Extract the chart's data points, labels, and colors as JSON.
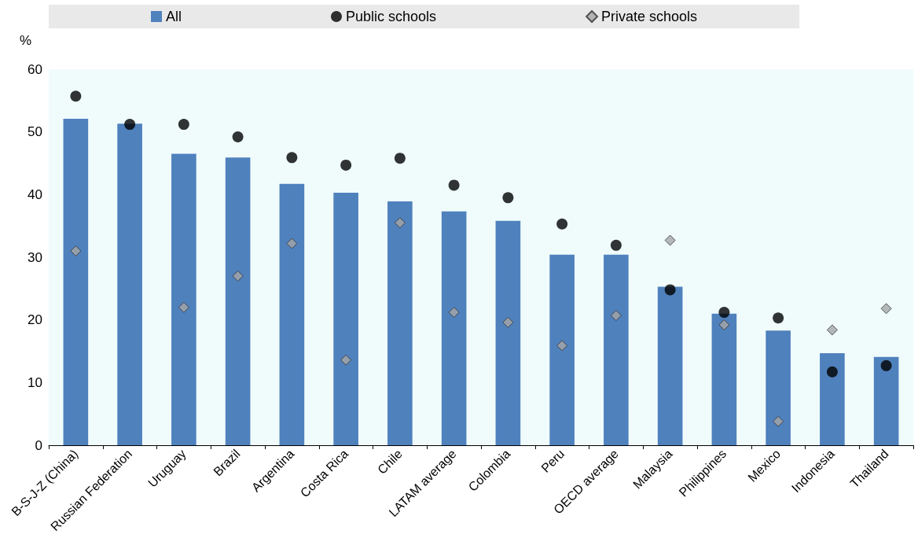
{
  "chart_data": {
    "type": "bar",
    "ylabel": "%",
    "categories": [
      "B-S-J-Z (China)",
      "Russian Federation",
      "Uruguay",
      "Brazil",
      "Argentina",
      "Costa Rica",
      "Chile",
      "LATAM average",
      "Colombia",
      "Peru",
      "OECD average",
      "Malaysia",
      "Philippines",
      "Mexico",
      "Indonesia",
      "Thailand"
    ],
    "series": [
      {
        "name": "All",
        "color": "#4f81bd",
        "values": [
          52.1,
          51.3,
          46.5,
          45.9,
          41.7,
          40.3,
          38.9,
          37.3,
          35.8,
          30.4,
          30.4,
          25.3,
          21.0,
          18.3,
          14.7,
          14.1
        ]
      },
      {
        "name": "Public schools",
        "type": "scatter",
        "marker": "circle",
        "color": "#000000",
        "values": [
          55.7,
          51.2,
          51.2,
          49.2,
          45.9,
          44.7,
          45.8,
          41.5,
          39.5,
          35.3,
          31.9,
          24.8,
          21.2,
          20.3,
          11.7,
          12.7
        ]
      },
      {
        "name": "Private schools",
        "type": "scatter",
        "marker": "diamond",
        "color": "#a6a6a6",
        "values": [
          31.0,
          null,
          22.0,
          27.0,
          32.2,
          13.6,
          35.5,
          21.2,
          19.6,
          15.9,
          20.7,
          32.7,
          19.2,
          3.8,
          18.4,
          21.8
        ]
      }
    ],
    "ylim": [
      0,
      60
    ],
    "yticks": [
      0,
      10,
      20,
      30,
      40,
      50,
      60
    ],
    "grid": false,
    "legend": "top"
  }
}
